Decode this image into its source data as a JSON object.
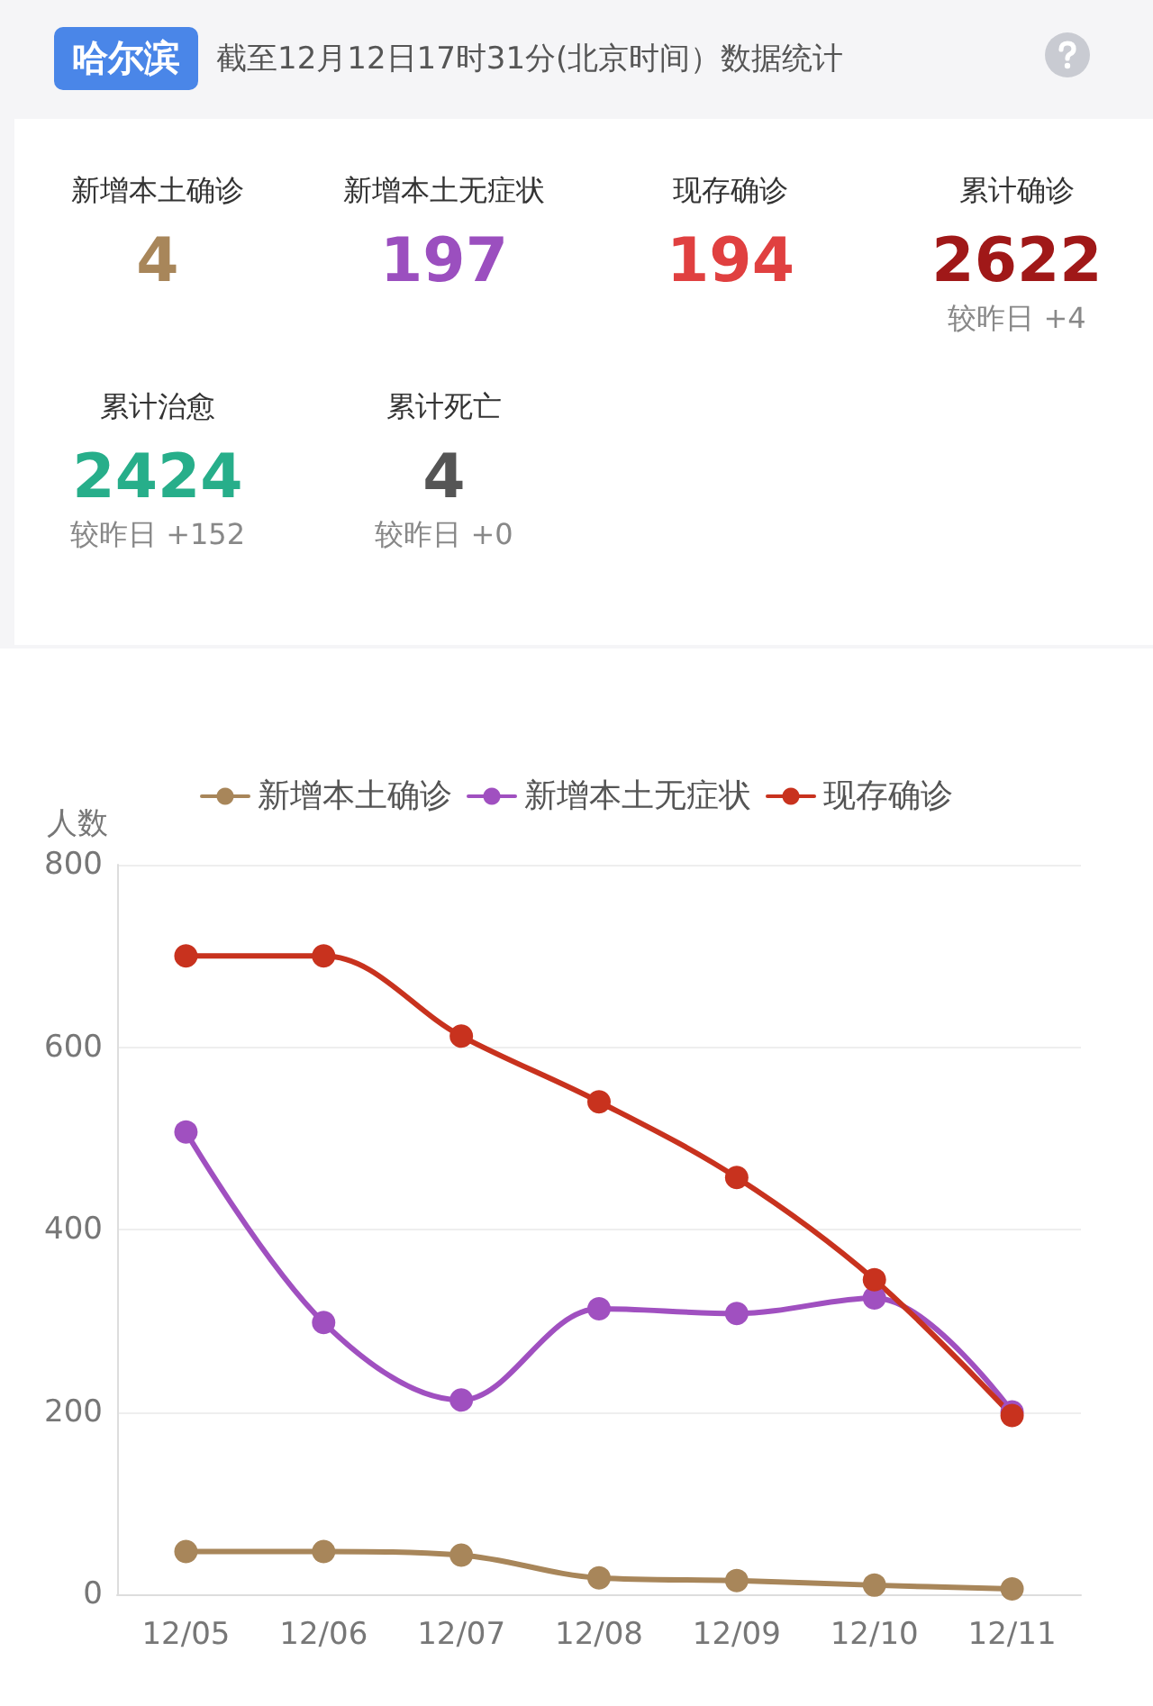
{
  "chart_data": [
    {
      "type": "other",
      "subtitle": "哈尔滨",
      "title": "截至12月12日17时31分(北京时间）数据统计",
      "categories": [
        "新增本土确诊",
        "新增本土无症状",
        "现存确诊",
        "累计确诊",
        "累计治愈",
        "累计死亡"
      ],
      "values": [
        4,
        197,
        194,
        2622,
        2424,
        4
      ],
      "data_labels": true,
      "cell_labels": [
        null,
        null,
        null,
        "较昨日 +4",
        "较昨日 +152",
        "较昨日 +0"
      ]
    },
    {
      "type": "line",
      "ylabel": "人数",
      "categories": [
        "12/05",
        "12/06",
        "12/07",
        "12/08",
        "12/09",
        "12/10",
        "12/11"
      ],
      "series": [
        {
          "name": "新增本土确诊",
          "color": "#a8865a",
          "values": [
            47,
            47,
            43,
            18,
            15,
            10,
            6
          ]
        },
        {
          "name": "新增本土无症状",
          "color": "#a050c0",
          "values": [
            507,
            298,
            213,
            313,
            308,
            325,
            200
          ]
        },
        {
          "name": "现存确诊",
          "color": "#c8321e",
          "values": [
            700,
            700,
            612,
            540,
            457,
            345,
            196
          ]
        }
      ],
      "ylim": [
        0,
        800
      ],
      "yticks": [
        0,
        200,
        400,
        600,
        800
      ],
      "grid": "y",
      "legend": "top",
      "marker": "circle",
      "line_style": "solid"
    }
  ]
}
